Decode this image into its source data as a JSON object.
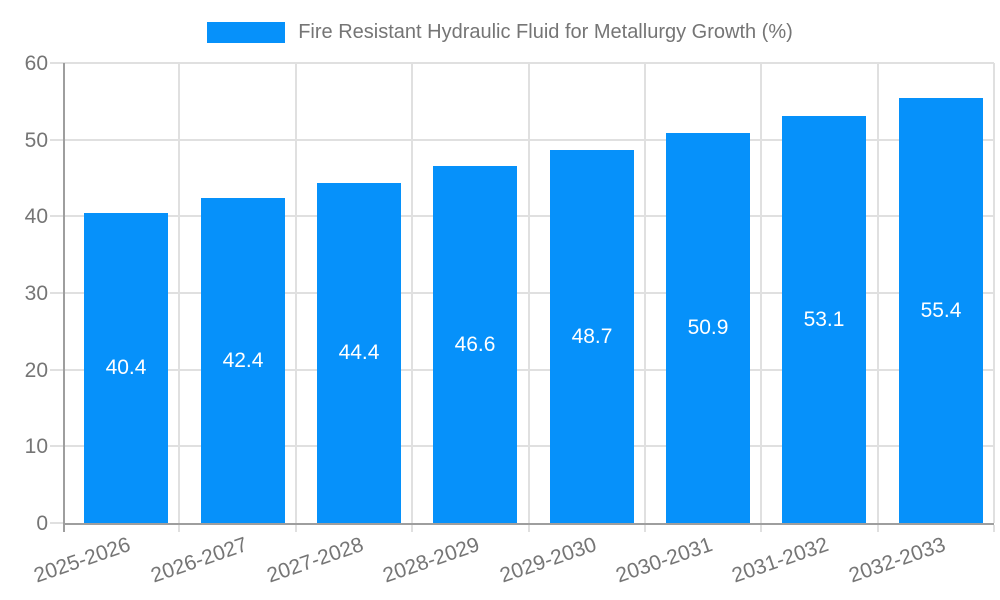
{
  "chart_data": {
    "type": "bar",
    "title": "Fire Resistant Hydraulic Fluid for Metallurgy Growth (%)",
    "categories": [
      "2025-2026",
      "2026-2027",
      "2027-2028",
      "2028-2029",
      "2029-2030",
      "2030-2031",
      "2031-2032",
      "2032-2033"
    ],
    "values": [
      40.4,
      42.4,
      44.4,
      46.6,
      48.7,
      50.9,
      53.1,
      55.4
    ],
    "bar_labels": [
      "40.4",
      "42.4",
      "44.4",
      "46.6",
      "48.7",
      "50.9",
      "53.1",
      "55.4"
    ],
    "ylim": [
      0,
      60
    ],
    "yticks": [
      0,
      10,
      20,
      30,
      40,
      50,
      60
    ],
    "ytick_labels": [
      "0",
      "10",
      "20",
      "30",
      "40",
      "50",
      "60"
    ],
    "xlabel": "",
    "ylabel": "",
    "grid": true,
    "legend_position": "top",
    "colors": {
      "bar": "#0691FA",
      "grid": "#E0E0E0",
      "axis": "#9E9E9E",
      "text": "#757575",
      "bar_label": "#FFFFFF"
    }
  }
}
